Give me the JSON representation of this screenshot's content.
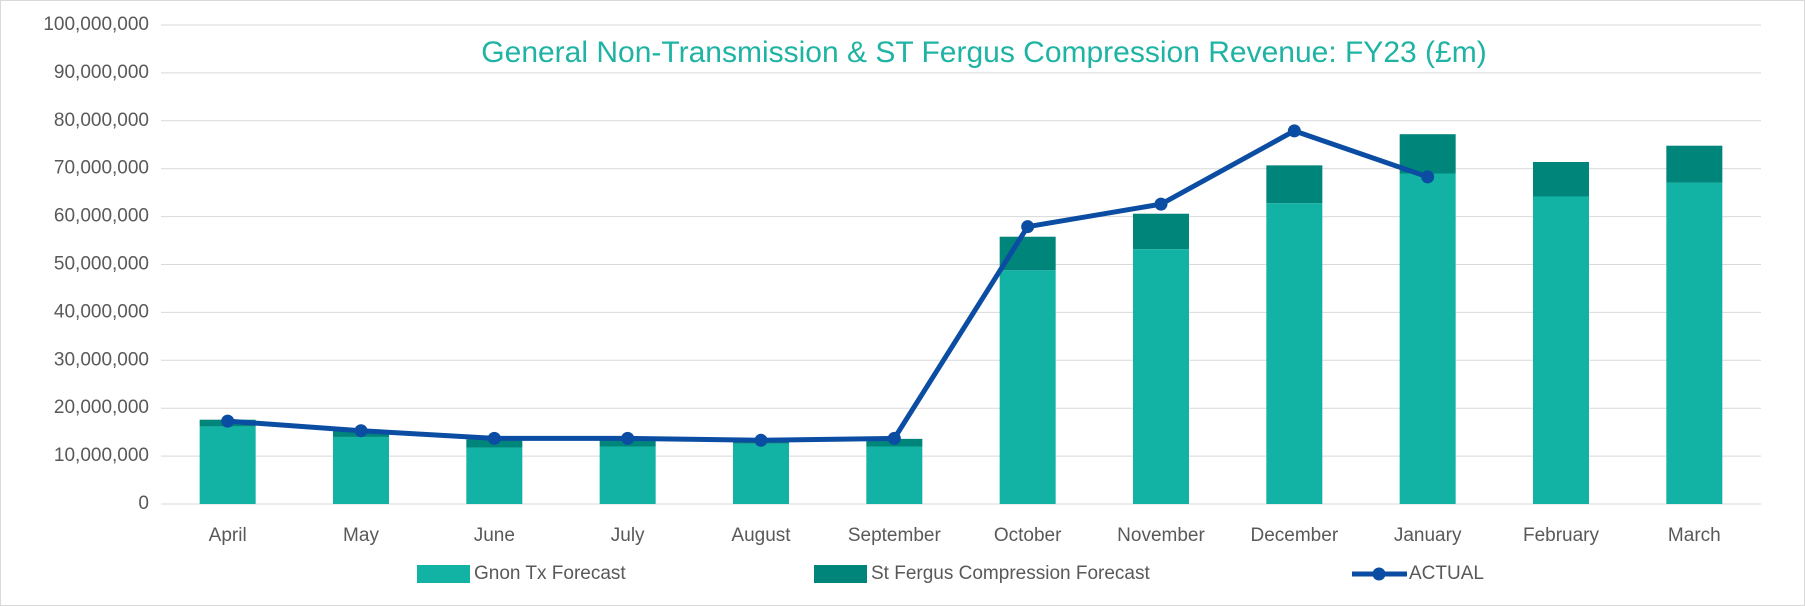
{
  "chart_data": {
    "type": "bar",
    "stacked": true,
    "title": "General Non-Transmission & ST Fergus Compression Revenue: FY23 (£m)",
    "categories": [
      "April",
      "May",
      "June",
      "July",
      "August",
      "September",
      "October",
      "November",
      "December",
      "January",
      "February",
      "March"
    ],
    "series": [
      {
        "name": "Gnon Tx Forecast",
        "color": "#12b3a5",
        "values": [
          16200000,
          14000000,
          11800000,
          12000000,
          12600000,
          12000000,
          48800000,
          53200000,
          62800000,
          69000000,
          64200000,
          67100000
        ]
      },
      {
        "name": "St Fergus Compression Forecast",
        "color": "#00857a",
        "values": [
          1400000,
          1400000,
          1700000,
          1700000,
          900000,
          1600000,
          7000000,
          7400000,
          7900000,
          8200000,
          7200000,
          7700000
        ]
      },
      {
        "name": "ACTUAL",
        "type": "line",
        "color": "#0b4da2",
        "values": [
          17300000,
          15300000,
          13700000,
          13700000,
          13300000,
          13700000,
          57900000,
          62600000,
          77900000,
          68300000,
          null,
          null
        ]
      }
    ],
    "ylim": [
      0,
      100000000
    ],
    "yticks": [
      0,
      {
        "value": 10000000,
        "label": "10,000,000"
      },
      {
        "value": 20000000,
        "label": "20,000,000"
      },
      {
        "value": 30000000,
        "label": "30,000,000"
      },
      {
        "value": 40000000,
        "label": "40,000,000"
      },
      {
        "value": 50000000,
        "label": "50,000,000"
      },
      {
        "value": 60000000,
        "label": "60,000,000"
      },
      {
        "value": 70000000,
        "label": "70,000,000"
      },
      {
        "value": 80000000,
        "label": "80,000,000"
      },
      {
        "value": 90000000,
        "label": "90,000,000"
      },
      {
        "value": 100000000,
        "label": "100,000,000"
      }
    ],
    "grid": true,
    "legend": "bottom"
  }
}
